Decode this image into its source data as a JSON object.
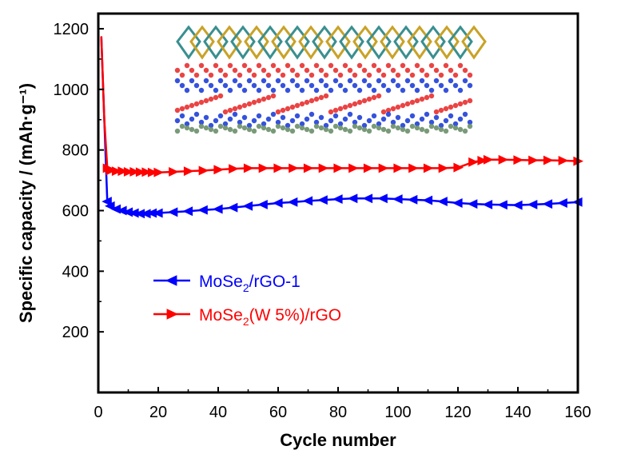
{
  "chart_data": {
    "type": "line",
    "xlabel": "Cycle number",
    "ylabel": "Specific capacity / (mAh·g⁻¹)",
    "xlim": [
      0,
      160
    ],
    "ylim": [
      0,
      1250
    ],
    "x_ticks": [
      "0",
      "20",
      "40",
      "60",
      "80",
      "100",
      "120",
      "140",
      "160"
    ],
    "y_ticks": [
      "200",
      "400",
      "600",
      "800",
      "1000",
      "1200"
    ],
    "grid": false,
    "legend_position": "lower-left",
    "series": [
      {
        "name": "MoSe2/rGO-1",
        "name_main": "MoSe",
        "name_sub": "2",
        "name_rest": "/rGO-1",
        "color": "#0000ff",
        "marker": "triangle-left",
        "x": [
          1,
          2,
          3,
          4,
          6,
          8,
          10,
          12,
          14,
          16,
          18,
          20,
          25,
          30,
          35,
          40,
          45,
          50,
          55,
          60,
          65,
          70,
          75,
          80,
          85,
          90,
          95,
          100,
          105,
          110,
          115,
          120,
          125,
          130,
          135,
          140,
          145,
          150,
          155,
          160
        ],
        "y": [
          1175,
          900,
          630,
          615,
          605,
          600,
          595,
          592,
          590,
          590,
          592,
          592,
          595,
          598,
          602,
          605,
          610,
          615,
          620,
          625,
          628,
          632,
          635,
          638,
          640,
          640,
          640,
          638,
          636,
          634,
          630,
          625,
          622,
          620,
          619,
          618,
          620,
          622,
          625,
          628
        ]
      },
      {
        "name": "MoSe2(W 5%)/rGO",
        "name_main": "MoSe",
        "name_sub": "2",
        "name_rest": "(W 5%)/rGO",
        "color": "#ff0000",
        "marker": "triangle-right",
        "x": [
          1,
          2,
          3,
          4,
          6,
          8,
          10,
          12,
          14,
          16,
          18,
          20,
          25,
          30,
          35,
          40,
          45,
          50,
          55,
          60,
          65,
          70,
          75,
          80,
          85,
          90,
          95,
          100,
          105,
          110,
          115,
          120,
          125,
          128,
          130,
          135,
          140,
          145,
          150,
          155,
          160
        ],
        "y": [
          1175,
          900,
          740,
          732,
          730,
          730,
          728,
          728,
          727,
          727,
          726,
          726,
          728,
          730,
          732,
          735,
          738,
          740,
          740,
          740,
          740,
          740,
          740,
          740,
          740,
          740,
          740,
          740,
          740,
          740,
          740,
          742,
          760,
          765,
          768,
          768,
          767,
          766,
          766,
          765,
          763
        ]
      }
    ]
  }
}
